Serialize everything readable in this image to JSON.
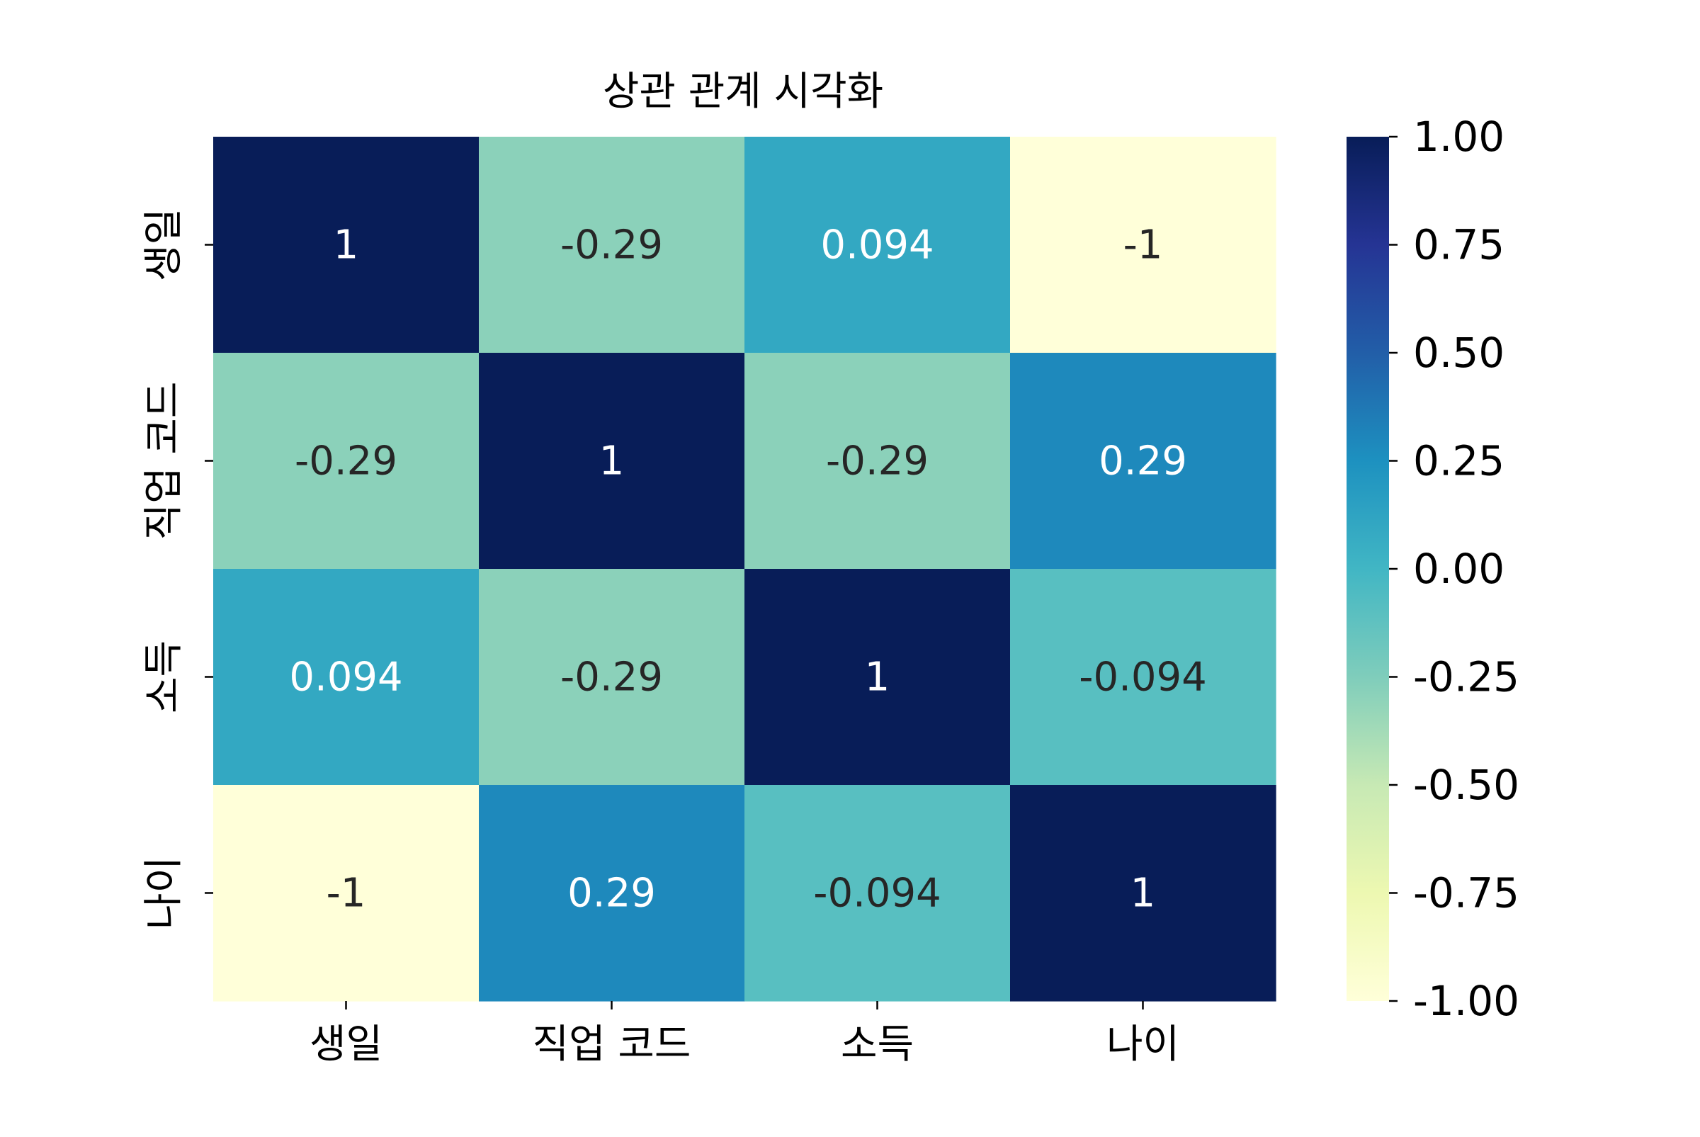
{
  "chart_data": {
    "type": "heatmap",
    "title": "상관 관계 시각화",
    "xlabel": "",
    "ylabel": "",
    "x_categories": [
      "생일",
      "직업 코드",
      "소득",
      "나이"
    ],
    "y_categories": [
      "생일",
      "직업 코드",
      "소득",
      "나이"
    ],
    "values": [
      [
        1,
        -0.29,
        0.094,
        -1
      ],
      [
        -0.29,
        1,
        -0.29,
        0.29
      ],
      [
        0.094,
        -0.29,
        1,
        -0.094
      ],
      [
        -1,
        0.29,
        -0.094,
        1
      ]
    ],
    "cell_labels": [
      [
        "1",
        "-0.29",
        "0.094",
        "-1"
      ],
      [
        "-0.29",
        "1",
        "-0.29",
        "0.29"
      ],
      [
        "0.094",
        "-0.29",
        "1",
        "-0.094"
      ],
      [
        "-1",
        "0.29",
        "-0.094",
        "1"
      ]
    ],
    "colorbar": {
      "vmin": -1,
      "vmax": 1,
      "colormap": "YlGnBu",
      "tick_values": [
        1,
        0.75,
        0.5,
        0.25,
        0,
        -0.25,
        -0.5,
        -0.75,
        -1
      ],
      "tick_labels": [
        "1.00",
        "0.75",
        "0.50",
        "0.25",
        "0.00",
        "-0.25",
        "-0.50",
        "-0.75",
        "-1.00"
      ]
    },
    "colors": {
      "stops": [
        "#ffffd9",
        "#edf8b1",
        "#c7e9b4",
        "#7fcdbb",
        "#41b6c4",
        "#1d91c0",
        "#225ea8",
        "#253494",
        "#081d58"
      ],
      "label_dark": "#262626",
      "label_light": "#ffffff",
      "axis": "#000000"
    }
  }
}
